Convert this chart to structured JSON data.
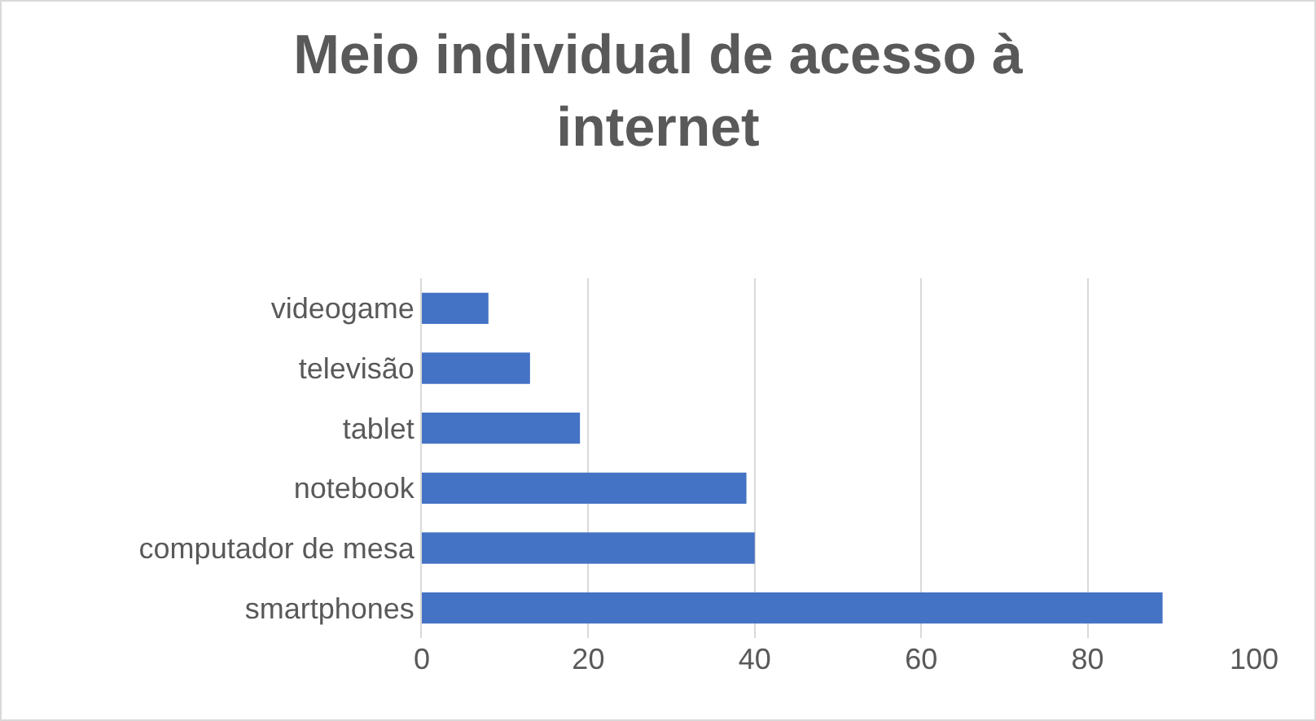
{
  "chart_data": {
    "type": "bar",
    "orientation": "horizontal",
    "title": "Meio individual de acesso à internet",
    "categories": [
      "videogame",
      "televisão",
      "tablet",
      "notebook",
      "computador de mesa",
      "smartphones"
    ],
    "values": [
      8,
      13,
      19,
      39,
      40,
      89
    ],
    "color": "#4472c4",
    "xlim": [
      0,
      100
    ],
    "xticks": [
      0,
      20,
      40,
      60,
      80,
      100
    ],
    "grid": "x"
  }
}
